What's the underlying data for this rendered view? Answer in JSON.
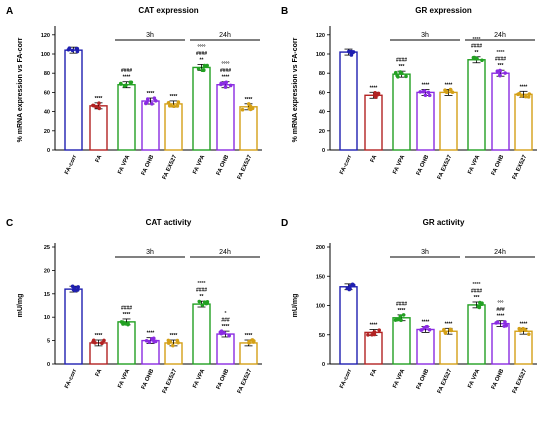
{
  "panels": [
    {
      "letter": "A",
      "title": "CAT expression",
      "ylabel": "% mRNA expression vs FA-corr",
      "ylim": [
        0,
        125
      ],
      "yticks": [
        0,
        20,
        40,
        60,
        80,
        100,
        120
      ],
      "categories": [
        "FA-corr",
        "FA",
        "FA VPA",
        "FA OHB",
        "FA EX527",
        "FA VPA",
        "FA OHB",
        "FA EX527"
      ],
      "values": [
        104,
        46,
        68,
        51,
        48,
        86,
        68,
        45
      ],
      "annotations": [
        [],
        [
          "****"
        ],
        [
          "####",
          "****"
        ],
        [
          "****"
        ],
        [
          "****"
        ],
        [
          "°°°°",
          "####",
          "**"
        ],
        [
          "°°°°",
          "####",
          "****"
        ],
        [
          "****"
        ]
      ],
      "groups": [
        {
          "label": "3h",
          "from": 2,
          "to": 4
        },
        {
          "label": "24h",
          "from": 5,
          "to": 7
        }
      ]
    },
    {
      "letter": "B",
      "title": "GR expression",
      "ylabel": "% mRNA expression vs FA-corr",
      "ylim": [
        0,
        125
      ],
      "yticks": [
        0,
        20,
        40,
        60,
        80,
        100,
        120
      ],
      "categories": [
        "FA-corr",
        "FA",
        "FA VPA",
        "FA OHB",
        "FA EX527",
        "FA VPA",
        "FA OHB",
        "FA EX527"
      ],
      "values": [
        102,
        57,
        79,
        60,
        60,
        94,
        80,
        58
      ],
      "annotations": [
        [],
        [
          "****"
        ],
        [
          "####",
          "***"
        ],
        [
          "****"
        ],
        [
          "****"
        ],
        [
          "°°°°",
          "####",
          "**"
        ],
        [
          "°°°°",
          "####",
          "***"
        ],
        [
          "****"
        ]
      ],
      "groups": [
        {
          "label": "3h",
          "from": 2,
          "to": 4
        },
        {
          "label": "24h",
          "from": 5,
          "to": 7
        }
      ]
    },
    {
      "letter": "C",
      "title": "CAT activity",
      "ylabel": "mU/mg",
      "ylim": [
        0,
        25
      ],
      "yticks": [
        0,
        5,
        10,
        15,
        20,
        25
      ],
      "categories": [
        "FA-corr",
        "FA",
        "FA VPA",
        "FA OHB",
        "FA EX527",
        "FA VPA",
        "FA OHB",
        "FA EX527"
      ],
      "values": [
        16,
        4.5,
        9,
        5,
        4.5,
        12.8,
        6.4,
        4.5
      ],
      "annotations": [
        [],
        [
          "****"
        ],
        [
          "####",
          "****"
        ],
        [
          "****"
        ],
        [
          "****"
        ],
        [
          "°°°°",
          "####",
          "**"
        ],
        [
          "°",
          "###",
          "****"
        ],
        [
          "****"
        ]
      ],
      "groups": [
        {
          "label": "3h",
          "from": 2,
          "to": 4
        },
        {
          "label": "24h",
          "from": 5,
          "to": 7
        }
      ]
    },
    {
      "letter": "D",
      "title": "GR activity",
      "ylabel": "mU/mg",
      "ylim": [
        0,
        200
      ],
      "yticks": [
        0,
        50,
        100,
        150,
        200
      ],
      "categories": [
        "FA-corr",
        "FA",
        "FA VPA",
        "FA OHB",
        "FA EX527",
        "FA VPA",
        "FA OHB",
        "FA EX527"
      ],
      "values": [
        132,
        54,
        79,
        59,
        56,
        101,
        69,
        56
      ],
      "annotations": [
        [],
        [
          "****"
        ],
        [
          "####",
          "****"
        ],
        [
          "****"
        ],
        [
          "****"
        ],
        [
          "°°°°",
          "####",
          "***"
        ],
        [
          "°°°",
          "###",
          "****"
        ],
        [
          "****"
        ]
      ],
      "groups": [
        {
          "label": "3h",
          "from": 2,
          "to": 4
        },
        {
          "label": "24h",
          "from": 5,
          "to": 7
        }
      ]
    }
  ],
  "colors": [
    "#1f1fb0",
    "#b22222",
    "#22a022",
    "#8a2be2",
    "#d4a017",
    "#22a022",
    "#8a2be2",
    "#d4a017"
  ],
  "chart_data": [
    {
      "type": "bar",
      "title": "CAT expression",
      "ylabel": "% mRNA expression vs FA-corr",
      "categories": [
        "FA-corr",
        "FA",
        "FA VPA",
        "FA OHB",
        "FA EX527",
        "FA VPA",
        "FA OHB",
        "FA EX527"
      ],
      "values": [
        104,
        46,
        68,
        51,
        48,
        86,
        68,
        45
      ],
      "ylim": [
        0,
        125
      ],
      "group_labels": [
        "3h",
        "24h"
      ]
    },
    {
      "type": "bar",
      "title": "GR expression",
      "ylabel": "% mRNA expression vs FA-corr",
      "categories": [
        "FA-corr",
        "FA",
        "FA VPA",
        "FA OHB",
        "FA EX527",
        "FA VPA",
        "FA OHB",
        "FA EX527"
      ],
      "values": [
        102,
        57,
        79,
        60,
        60,
        94,
        80,
        58
      ],
      "ylim": [
        0,
        125
      ],
      "group_labels": [
        "3h",
        "24h"
      ]
    },
    {
      "type": "bar",
      "title": "CAT activity",
      "ylabel": "mU/mg",
      "categories": [
        "FA-corr",
        "FA",
        "FA VPA",
        "FA OHB",
        "FA EX527",
        "FA VPA",
        "FA OHB",
        "FA EX527"
      ],
      "values": [
        16,
        4.5,
        9,
        5,
        4.5,
        12.8,
        6.4,
        4.5
      ],
      "ylim": [
        0,
        25
      ],
      "group_labels": [
        "3h",
        "24h"
      ]
    },
    {
      "type": "bar",
      "title": "GR activity",
      "ylabel": "mU/mg",
      "categories": [
        "FA-corr",
        "FA",
        "FA VPA",
        "FA OHB",
        "FA EX527",
        "FA VPA",
        "FA OHB",
        "FA EX527"
      ],
      "values": [
        132,
        54,
        79,
        59,
        56,
        101,
        69,
        56
      ],
      "ylim": [
        0,
        200
      ],
      "group_labels": [
        "3h",
        "24h"
      ]
    }
  ]
}
